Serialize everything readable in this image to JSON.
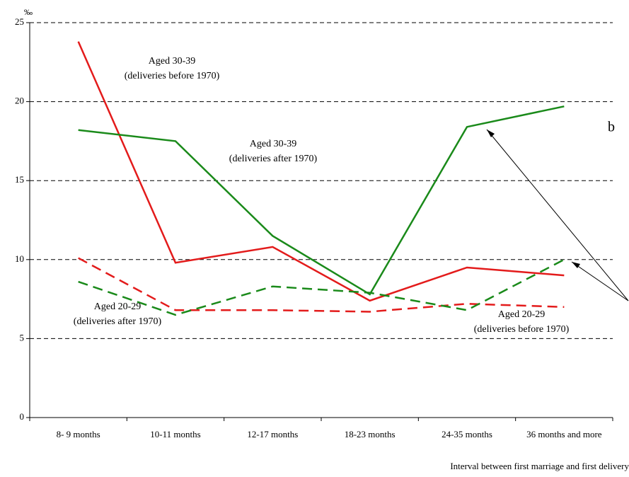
{
  "chart_data": {
    "type": "line",
    "y_unit": "‰",
    "x_title": "Interval between first marriage and first delivery",
    "categories": [
      "8- 9 months",
      "10-11 months",
      "12-17 months",
      "18-23 months",
      "24-35 months",
      "36 months and more"
    ],
    "series": [
      {
        "color": "#e31b1b",
        "dashed": false,
        "values": [
          23.8,
          9.8,
          10.8,
          7.4,
          9.5,
          9.0
        ]
      },
      {
        "color": "#1a8a1a",
        "dashed": false,
        "values": [
          18.2,
          17.5,
          11.5,
          7.8,
          18.4,
          19.7
        ]
      },
      {
        "color": "#e31b1b",
        "dashed": true,
        "values": [
          10.1,
          6.8,
          6.8,
          6.7,
          7.2,
          7.0
        ]
      },
      {
        "color": "#1a8a1a",
        "dashed": true,
        "values": [
          8.6,
          6.5,
          8.3,
          7.9,
          6.8,
          10.0
        ]
      }
    ],
    "annotations": [
      {
        "lines": [
          "Aged 30-39",
          "(deliveries before 1970)"
        ]
      },
      {
        "lines": [
          "Aged 30-39",
          "(deliveries after 1970)"
        ]
      },
      {
        "lines": [
          "Aged 20-29",
          "(deliveries after 1970)"
        ]
      },
      {
        "lines": [
          "Aged 20-29",
          "(deliveries before 1970)"
        ]
      },
      {
        "lines": [
          "b"
        ]
      }
    ],
    "ylim": [
      0,
      25
    ],
    "yticks": [
      0,
      5,
      10,
      15,
      20,
      25
    ],
    "grid": true
  }
}
